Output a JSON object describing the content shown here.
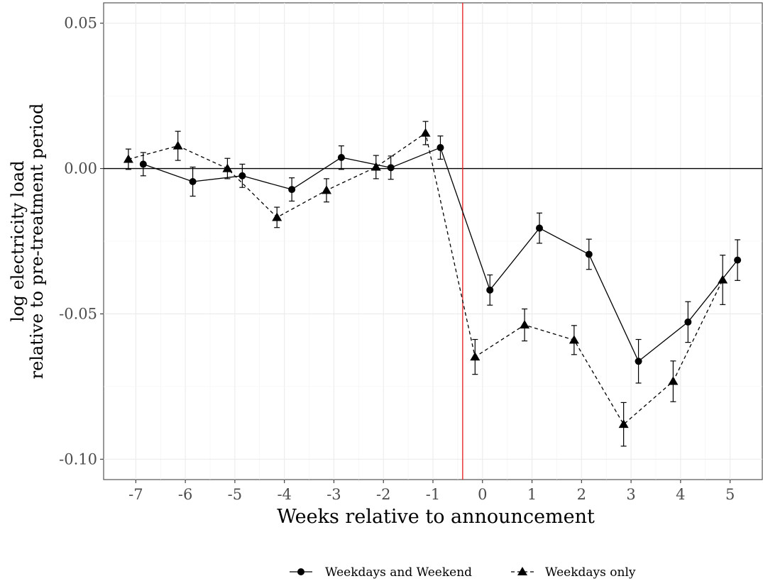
{
  "chart_data": {
    "type": "line",
    "title": "",
    "xlabel": "Weeks relative to announcement",
    "ylabel_line1": "log electricity load",
    "ylabel_line2": "relative to pre-treatment period",
    "x_ticks": [
      -7,
      -6,
      -5,
      -4,
      -3,
      -2,
      -1,
      0,
      1,
      2,
      3,
      4,
      5
    ],
    "y_ticks": [
      0.05,
      0.0,
      -0.05,
      -0.1
    ],
    "y_tick_labels": [
      "0.05",
      "0.00",
      "-0.05",
      "-0.10"
    ],
    "xlim": [
      -7.65,
      5.65
    ],
    "ylim": [
      -0.107,
      0.057
    ],
    "grid": true,
    "reference_hline": 0.0,
    "reference_vline": -0.4,
    "reference_vline_color": "#e41a1c",
    "legend_position": "bottom",
    "series": [
      {
        "name": "Weekdays and Weekend",
        "marker": "circle",
        "line_style": "solid",
        "x": [
          -7,
          -6,
          -5,
          -4,
          -3,
          -2,
          -1,
          0,
          1,
          2,
          3,
          4,
          5
        ],
        "y": [
          0.0015,
          -0.0045,
          -0.0025,
          -0.0072,
          0.0038,
          0.0003,
          0.0072,
          -0.0418,
          -0.0205,
          -0.0295,
          -0.0663,
          -0.0528,
          -0.0315
        ],
        "ci_low": [
          -0.0025,
          -0.0095,
          -0.0065,
          -0.0112,
          -0.0003,
          -0.0037,
          0.0032,
          -0.047,
          -0.0257,
          -0.0347,
          -0.0738,
          -0.0598,
          -0.0385
        ],
        "ci_high": [
          0.0055,
          0.0005,
          0.0015,
          -0.0032,
          0.0078,
          0.0043,
          0.0112,
          -0.0366,
          -0.0153,
          -0.0243,
          -0.0588,
          -0.0458,
          -0.0245
        ]
      },
      {
        "name": "Weekdays only",
        "marker": "triangle",
        "line_style": "dashed",
        "x": [
          -7,
          -6,
          -5,
          -4,
          -3,
          -2,
          -1,
          0,
          1,
          2,
          3,
          4,
          5
        ],
        "y": [
          0.0032,
          0.0078,
          0.0,
          -0.0168,
          -0.0075,
          0.0005,
          0.0122,
          -0.0648,
          -0.0538,
          -0.059,
          -0.088,
          -0.0732,
          -0.0383
        ],
        "ci_low": [
          -0.0003,
          0.0028,
          -0.0035,
          -0.0203,
          -0.0115,
          -0.0035,
          0.0082,
          -0.0708,
          -0.0593,
          -0.064,
          -0.0955,
          -0.0802,
          -0.0468
        ],
        "ci_high": [
          0.0067,
          0.0128,
          0.0035,
          -0.0133,
          -0.0035,
          0.0045,
          0.0162,
          -0.0588,
          -0.0483,
          -0.054,
          -0.0805,
          -0.0662,
          -0.0298
        ]
      }
    ]
  }
}
